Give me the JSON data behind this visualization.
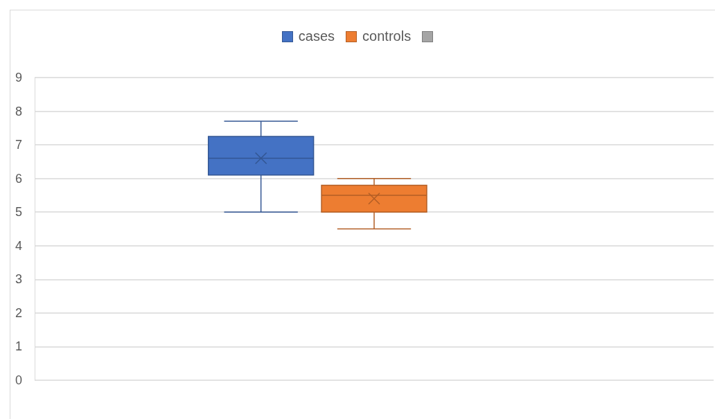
{
  "chart_data": {
    "type": "box",
    "categories": [
      null
    ],
    "ylim": [
      0,
      9
    ],
    "yticks": [
      0,
      1,
      2,
      3,
      4,
      5,
      6,
      7,
      8,
      9
    ],
    "grid": "y",
    "legend": "top",
    "series": [
      {
        "name": "cases",
        "color": "#4472c4",
        "boxes": [
          {
            "low": 5.0,
            "q1": 6.1,
            "median": 6.6,
            "q3": 7.25,
            "high": 7.7,
            "mean": 6.6
          }
        ]
      },
      {
        "name": "controls",
        "color": "#ed7d31",
        "boxes": [
          {
            "low": 4.5,
            "q1": 5.0,
            "median": 5.5,
            "q3": 5.8,
            "high": 6.0,
            "mean": 5.4
          }
        ]
      },
      {
        "color": "#a5a5a5",
        "boxes": [
          null
        ]
      }
    ]
  }
}
